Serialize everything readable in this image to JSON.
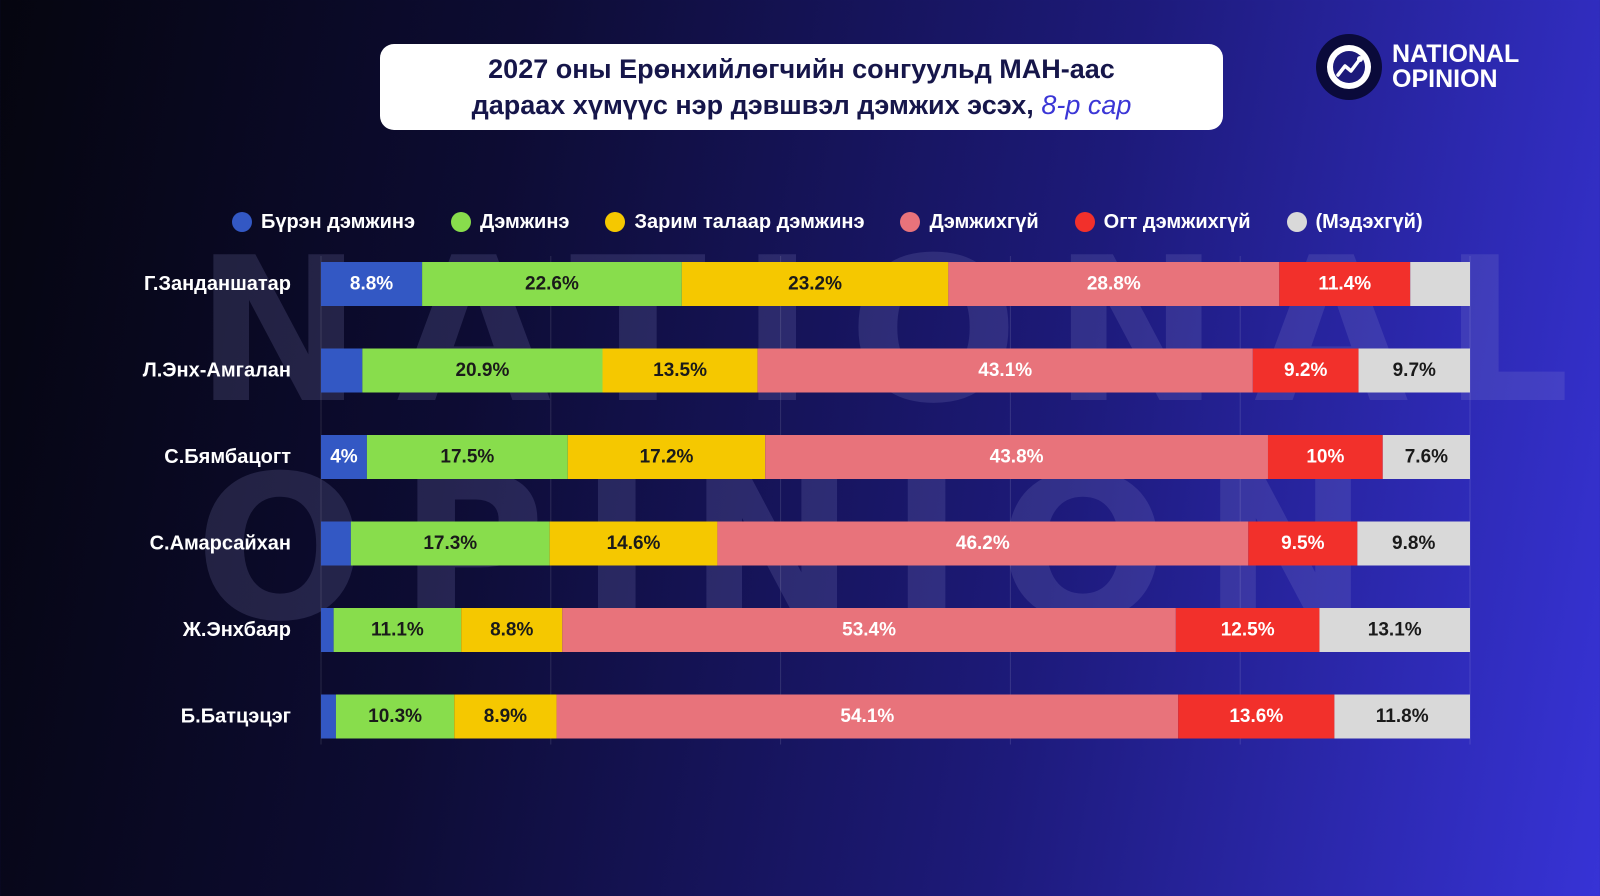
{
  "watermark": {
    "line1": "NATIONAL",
    "line2": "OPINION"
  },
  "title": {
    "line1": "2027 оны Ерөнхийлөгчийн сонгуульд МАН-аас",
    "line2_main": "дараах хүмүүс нэр дэвшвэл дэмжих эсэх,",
    "line2_italic": "8-р сар"
  },
  "logo": {
    "line1": "NATIONAL",
    "line2": "OPINION",
    "icon": "chart-trend-icon"
  },
  "chart_data": {
    "type": "bar",
    "orientation": "horizontal",
    "stacked": true,
    "percent": true,
    "xlim": [
      0,
      100
    ],
    "legend_position": "top",
    "categories": [
      "Г.Занданшатар",
      "Л.Энх-Амгалан",
      "С.Бямбацогт",
      "С.Амарсайхан",
      "Ж.Энхбаяр",
      "Б.Батцэцэг"
    ],
    "series": [
      {
        "name": "Бүрэн дэмжинэ",
        "color": "#3358c4",
        "text_color": "#ffffff",
        "values": [
          8.8,
          3.6,
          4.0,
          2.6,
          1.1,
          1.3
        ],
        "labels": [
          "8.8%",
          "",
          "4%",
          "",
          "",
          ""
        ]
      },
      {
        "name": "Дэмжинэ",
        "color": "#88dd4c",
        "text_color": "#1a1a1a",
        "values": [
          22.6,
          20.9,
          17.5,
          17.3,
          11.1,
          10.3
        ],
        "labels": [
          "22.6%",
          "20.9%",
          "17.5%",
          "17.3%",
          "11.1%",
          "10.3%"
        ]
      },
      {
        "name": "Зарим талаар дэмжинэ",
        "color": "#f5c800",
        "text_color": "#1a1a1a",
        "values": [
          23.2,
          13.5,
          17.2,
          14.6,
          8.8,
          8.9
        ],
        "labels": [
          "23.2%",
          "13.5%",
          "17.2%",
          "14.6%",
          "8.8%",
          "8.9%"
        ]
      },
      {
        "name": "Дэмжихгүй",
        "color": "#e8737b",
        "text_color": "#ffffff",
        "values": [
          28.8,
          43.1,
          43.8,
          46.2,
          53.4,
          54.1
        ],
        "labels": [
          "28.8%",
          "43.1%",
          "43.8%",
          "46.2%",
          "53.4%",
          "54.1%"
        ]
      },
      {
        "name": "Огт дэмжихгүй",
        "color": "#f2302b",
        "text_color": "#ffffff",
        "values": [
          11.4,
          9.2,
          10.0,
          9.5,
          12.5,
          13.6
        ],
        "labels": [
          "11.4%",
          "9.2%",
          "10%",
          "9.5%",
          "12.5%",
          "13.6%"
        ]
      },
      {
        "name": "(Мэдэхгүй)",
        "color": "#d9d9d9",
        "text_color": "#1a1a1a",
        "values": [
          5.2,
          9.7,
          7.6,
          9.8,
          13.1,
          11.8
        ],
        "labels": [
          "",
          "9.7%",
          "7.6%",
          "9.8%",
          "13.1%",
          "11.8%"
        ]
      }
    ]
  }
}
